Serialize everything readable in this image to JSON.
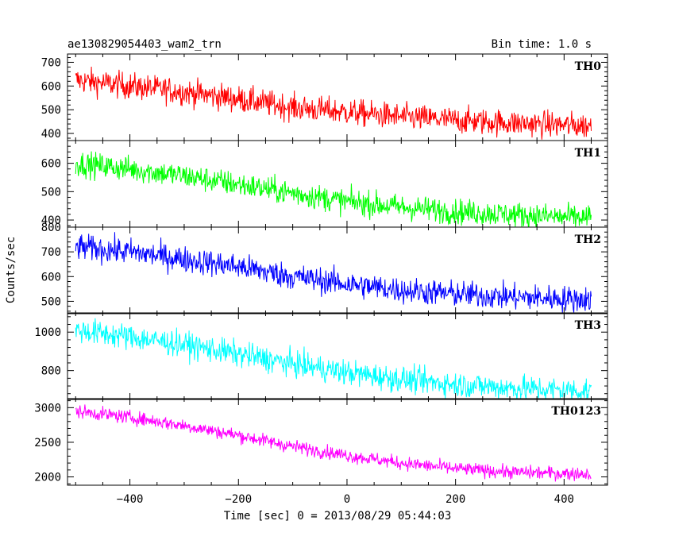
{
  "chart_data": {
    "type": "line",
    "title": "ae130829054403_wam2_trn",
    "bin_time": "Bin time: 1.0 s",
    "xlabel": "Time [sec] 0 = 2013/08/29 05:44:03",
    "ylabel": "Counts/sec",
    "xlim": [
      -515,
      480
    ],
    "x_start": -500,
    "x_end": 450,
    "x_step": 1,
    "x_ticks": [
      -400,
      -200,
      0,
      200,
      400
    ],
    "x_tick_labels": [
      "−400",
      "−200",
      "0",
      "200",
      "400"
    ],
    "grid": false,
    "panels": [
      {
        "name": "TH0",
        "color": "#ff0000",
        "ylim": [
          370,
          735
        ],
        "yticks": [
          400,
          500,
          600,
          700
        ],
        "trend_x": [
          -500,
          -400,
          -300,
          -200,
          -100,
          0,
          100,
          200,
          300,
          400,
          450
        ],
        "trend_y": [
          625,
          600,
          575,
          545,
          510,
          490,
          470,
          455,
          445,
          435,
          432
        ],
        "noise_amplitude": 40
      },
      {
        "name": "TH1",
        "color": "#00ff00",
        "ylim": [
          375,
          680
        ],
        "yticks": [
          400,
          500,
          600
        ],
        "trend_x": [
          -500,
          -400,
          -300,
          -200,
          -100,
          0,
          100,
          200,
          300,
          400,
          450
        ],
        "trend_y": [
          600,
          580,
          555,
          525,
          495,
          465,
          445,
          430,
          420,
          410,
          408
        ],
        "noise_amplitude": 32
      },
      {
        "name": "TH2",
        "color": "#0000ff",
        "ylim": [
          450,
          800
        ],
        "yticks": [
          500,
          600,
          700,
          800
        ],
        "trend_x": [
          -500,
          -400,
          -300,
          -200,
          -100,
          0,
          100,
          200,
          300,
          400,
          450
        ],
        "trend_y": [
          720,
          700,
          670,
          640,
          600,
          570,
          545,
          530,
          518,
          510,
          508
        ],
        "noise_amplitude": 38
      },
      {
        "name": "TH3",
        "color": "#00ffff",
        "ylim": [
          650,
          1100
        ],
        "yticks": [
          800,
          1000
        ],
        "trend_x": [
          -500,
          -400,
          -300,
          -200,
          -100,
          0,
          100,
          200,
          300,
          400,
          450
        ],
        "trend_y": [
          1010,
          975,
          935,
          885,
          835,
          790,
          755,
          728,
          710,
          698,
          695
        ],
        "noise_amplitude": 48
      },
      {
        "name": "TH0123",
        "color": "#ff00ff",
        "ylim": [
          1880,
          3130
        ],
        "yticks": [
          2000,
          2500,
          3000
        ],
        "trend_x": [
          -500,
          -400,
          -300,
          -200,
          -100,
          0,
          100,
          200,
          300,
          400,
          450
        ],
        "trend_y": [
          2950,
          2860,
          2740,
          2600,
          2440,
          2310,
          2200,
          2120,
          2070,
          2050,
          2045
        ],
        "noise_amplitude": 70
      }
    ]
  }
}
